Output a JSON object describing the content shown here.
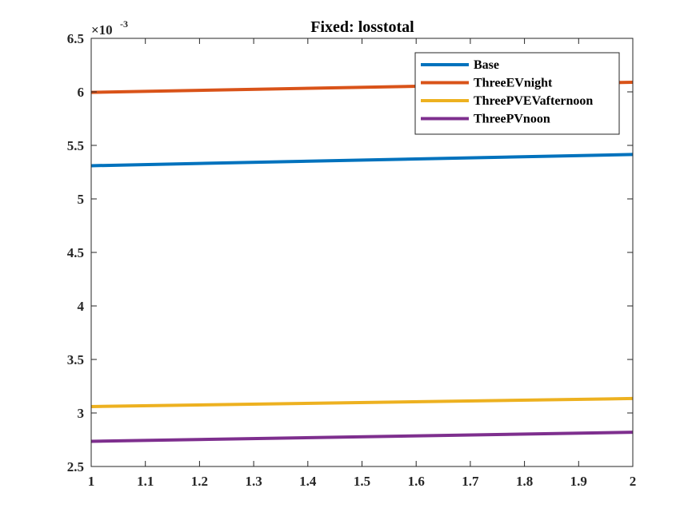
{
  "chart_data": {
    "type": "line",
    "title": "Fixed: losstotal",
    "xlabel": "",
    "ylabel": "",
    "xlim": [
      1,
      2
    ],
    "ylim": [
      2.5,
      6.5
    ],
    "x_ticks": [
      "1",
      "1.1",
      "1.2",
      "1.3",
      "1.4",
      "1.5",
      "1.6",
      "1.7",
      "1.8",
      "1.9",
      "2"
    ],
    "y_ticks": [
      "2.5",
      "3",
      "3.5",
      "4",
      "4.5",
      "5",
      "5.5",
      "6",
      "6.5"
    ],
    "y_exponent": {
      "base": "10",
      "power": "-3"
    },
    "grid": false,
    "legend_location": "top-right",
    "x": [
      1,
      2
    ],
    "series": [
      {
        "name": "Base",
        "color": "#0072BD",
        "values": [
          5.31,
          5.415
        ]
      },
      {
        "name": "ThreeEVnight",
        "color": "#D95319",
        "values": [
          5.995,
          6.09
        ]
      },
      {
        "name": "ThreePVEVafternoon",
        "color": "#EDB120",
        "values": [
          3.06,
          3.135
        ]
      },
      {
        "name": "ThreePVnoon",
        "color": "#7E2F8E",
        "values": [
          2.735,
          2.82
        ]
      }
    ]
  }
}
